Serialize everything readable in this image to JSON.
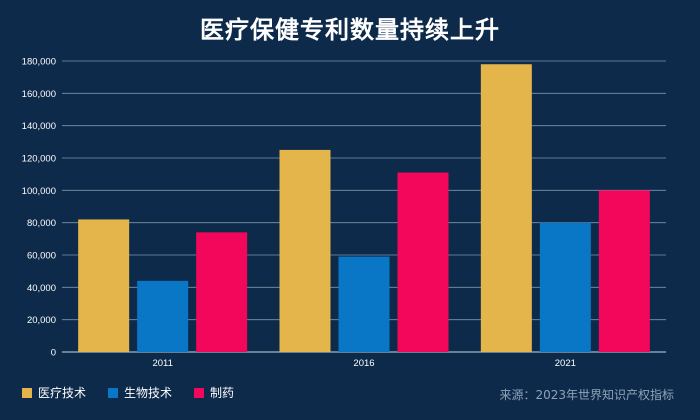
{
  "chart_data": {
    "type": "bar",
    "title": "医疗保健专利数量持续上升",
    "categories": [
      "2011",
      "2016",
      "2021"
    ],
    "series": [
      {
        "name": "医疗技术",
        "color": "#e3b54a",
        "values": [
          82000,
          125000,
          178000
        ]
      },
      {
        "name": "生物技术",
        "color": "#0a76c6",
        "values": [
          44000,
          59000,
          80000
        ]
      },
      {
        "name": "制药",
        "color": "#f2075a",
        "values": [
          74000,
          111000,
          100000
        ]
      }
    ],
    "yticks": [
      "0",
      "20,000",
      "40,000",
      "60,000",
      "80,000",
      "100,000",
      "120,000",
      "140,000",
      "160,000",
      "180,000"
    ],
    "ylim": [
      0,
      180000
    ],
    "grid": true,
    "legend": "bottom-left"
  },
  "source": "来源：2023年世界知识产权指标"
}
